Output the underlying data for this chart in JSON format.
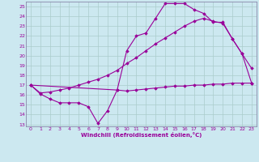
{
  "title": "",
  "xlabel": "Windchill (Refroidissement éolien,°C)",
  "ylabel": "",
  "bg_color": "#cce8f0",
  "line_color": "#990099",
  "grid_color": "#aacccc",
  "spine_color": "#8888aa",
  "xlim": [
    -0.5,
    23.5
  ],
  "ylim": [
    12.8,
    25.5
  ],
  "xticks": [
    0,
    1,
    2,
    3,
    4,
    5,
    6,
    7,
    8,
    9,
    10,
    11,
    12,
    13,
    14,
    15,
    16,
    17,
    18,
    19,
    20,
    21,
    22,
    23
  ],
  "yticks": [
    13,
    14,
    15,
    16,
    17,
    18,
    19,
    20,
    21,
    22,
    23,
    24,
    25
  ],
  "line1_x": [
    0,
    1,
    2,
    3,
    4,
    5,
    6,
    7,
    8,
    9,
    10,
    11,
    12,
    13,
    14,
    15,
    16,
    17,
    18,
    19,
    20,
    21,
    22,
    23
  ],
  "line1_y": [
    17.0,
    16.1,
    15.6,
    15.2,
    15.2,
    15.2,
    14.8,
    13.1,
    14.4,
    16.5,
    16.4,
    16.5,
    16.6,
    16.7,
    16.8,
    16.9,
    16.9,
    17.0,
    17.0,
    17.1,
    17.1,
    17.2,
    17.2,
    17.2
  ],
  "line2_x": [
    0,
    1,
    2,
    3,
    4,
    5,
    6,
    7,
    8,
    9,
    10,
    11,
    12,
    13,
    14,
    15,
    16,
    17,
    18,
    19,
    20,
    21,
    22,
    23
  ],
  "line2_y": [
    17.0,
    16.2,
    16.3,
    16.5,
    16.7,
    17.0,
    17.3,
    17.6,
    18.0,
    18.5,
    19.2,
    19.8,
    20.5,
    21.2,
    21.8,
    22.4,
    23.0,
    23.5,
    23.8,
    23.5,
    23.3,
    21.7,
    20.2,
    17.2
  ],
  "line3_x": [
    0,
    9,
    10,
    11,
    12,
    13,
    14,
    15,
    16,
    17,
    18,
    19,
    20,
    21,
    22,
    23
  ],
  "line3_y": [
    17.0,
    16.5,
    20.5,
    22.0,
    22.3,
    23.8,
    25.3,
    25.3,
    25.3,
    24.7,
    24.3,
    23.4,
    23.4,
    21.7,
    20.2,
    18.7
  ]
}
